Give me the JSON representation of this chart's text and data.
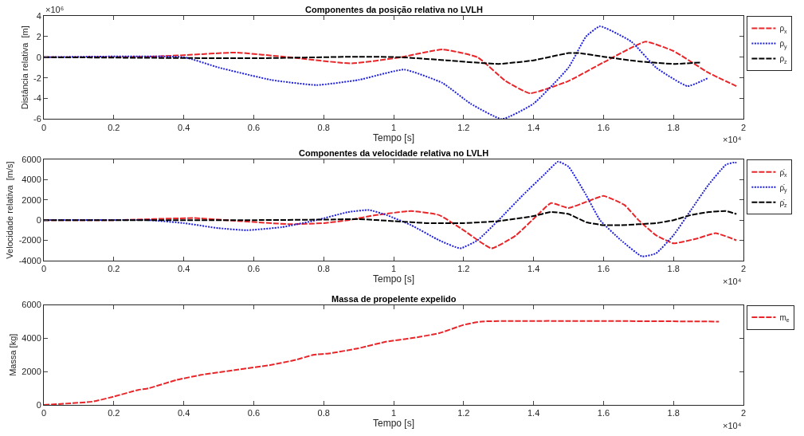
{
  "chart_data": [
    {
      "type": "line",
      "title": "Componentes da posição relativa no LVLH",
      "xlabel": "Tempo [s]",
      "ylabel": "Distância relativa  [m]",
      "legend": "top right",
      "grid": false,
      "xlim": [
        0,
        2
      ],
      "xticks": [
        0,
        0.2,
        0.4,
        0.6,
        0.8,
        1,
        1.2,
        1.4,
        1.6,
        1.8,
        2
      ],
      "ylim": [
        -6,
        4
      ],
      "yticks": [
        -6,
        -4,
        -2,
        0,
        2,
        4
      ],
      "annotations": [
        "×10⁶",
        "×10⁴"
      ],
      "series": [
        {
          "name": "ρ$_{x}$",
          "color": "#e8262a",
          "line_style": "dashed",
          "x": [
            0,
            0.3,
            0.4,
            0.55,
            0.7,
            0.88,
            1.02,
            1.14,
            1.24,
            1.32,
            1.39,
            1.5,
            1.6,
            1.72,
            1.8,
            1.9,
            1.98
          ],
          "values": [
            0,
            0.05,
            0.2,
            0.45,
            0,
            -0.6,
            0,
            0.75,
            0,
            -2.3,
            -3.5,
            -2.3,
            -0.5,
            1.5,
            0.6,
            -1.5,
            -2.8
          ]
        },
        {
          "name": "ρ$_{y}$",
          "color": "#1f1fe0",
          "line_style": "dotted",
          "x": [
            0,
            0.4,
            0.5,
            0.65,
            0.78,
            0.9,
            1.03,
            1.14,
            1.22,
            1.31,
            1.4,
            1.5,
            1.55,
            1.59,
            1.68,
            1.75,
            1.84,
            1.9
          ],
          "values": [
            0,
            0,
            -1,
            -2.2,
            -2.7,
            -2.2,
            -1.2,
            -2.5,
            -4.5,
            -6,
            -4.5,
            -1,
            2,
            3,
            1.5,
            -1,
            -2.8,
            -2
          ]
        },
        {
          "name": "ρ$_{z}$",
          "color": "#000000",
          "line_style": "dashed",
          "x": [
            0,
            0.6,
            0.9,
            1.02,
            1.15,
            1.3,
            1.4,
            1.5,
            1.53,
            1.6,
            1.7,
            1.8,
            1.88
          ],
          "values": [
            0,
            -0.1,
            0.05,
            0,
            -0.3,
            -0.65,
            -0.3,
            0.4,
            0.4,
            0.05,
            -0.4,
            -0.65,
            -0.5
          ]
        }
      ]
    },
    {
      "type": "line",
      "title": "Componentes da velocidade relativa no LVLH",
      "xlabel": "Tempo [s]",
      "ylabel": "Velocidade relativa  [m/s]",
      "legend": "top right",
      "grid": false,
      "xlim": [
        0,
        2
      ],
      "xticks": [
        0,
        0.2,
        0.4,
        0.6,
        0.8,
        1,
        1.2,
        1.4,
        1.6,
        1.8,
        2
      ],
      "ylim": [
        -4000,
        6000
      ],
      "yticks": [
        -4000,
        -2000,
        0,
        2000,
        4000,
        6000
      ],
      "annotations": [
        "×10⁴"
      ],
      "series": [
        {
          "name": "ρ̇$_{x}$",
          "color": "#e8262a",
          "line_style": "dashed",
          "x": [
            0,
            0.2,
            0.43,
            0.52,
            0.7,
            0.8,
            0.87,
            0.95,
            1.05,
            1.13,
            1.2,
            1.28,
            1.35,
            1.42,
            1.45,
            1.5,
            1.55,
            1.6,
            1.66,
            1.7,
            1.75,
            1.8,
            1.87,
            1.92,
            1.98
          ],
          "values": [
            0,
            0,
            200,
            0,
            -400,
            -300,
            0,
            500,
            900,
            500,
            -1000,
            -2800,
            -1500,
            800,
            1700,
            1200,
            1800,
            2400,
            1500,
            0,
            -1500,
            -2300,
            -1800,
            -1300,
            -2000
          ]
        },
        {
          "name": "ρ̇$_{y}$",
          "color": "#1f1fe0",
          "line_style": "dotted",
          "x": [
            0,
            0.3,
            0.4,
            0.5,
            0.58,
            0.68,
            0.78,
            0.87,
            0.93,
            0.98,
            1.05,
            1.13,
            1.19,
            1.24,
            1.3,
            1.37,
            1.43,
            1.47,
            1.5,
            1.55,
            1.59,
            1.65,
            1.71,
            1.75,
            1.8,
            1.85,
            1.9,
            1.95,
            1.97,
            1.98
          ],
          "values": [
            0,
            0,
            -300,
            -800,
            -1000,
            -700,
            0,
            800,
            1000,
            500,
            -500,
            -2000,
            -2800,
            -2000,
            0,
            2500,
            4500,
            5800,
            5300,
            2500,
            0,
            -2000,
            -3600,
            -3300,
            -1500,
            1000,
            3500,
            5500,
            5700,
            5700
          ]
        },
        {
          "name": "ρ̇$_{z}$",
          "color": "#000000",
          "line_style": "dashed",
          "x": [
            0,
            0.6,
            0.8,
            0.9,
            1,
            1.1,
            1.2,
            1.3,
            1.4,
            1.45,
            1.5,
            1.55,
            1.6,
            1.65,
            1.75,
            1.8,
            1.85,
            1.9,
            1.95,
            1.98
          ],
          "values": [
            0,
            0,
            50,
            100,
            -100,
            -300,
            -300,
            -100,
            400,
            800,
            600,
            -200,
            -500,
            -500,
            -300,
            0,
            500,
            800,
            900,
            600
          ]
        }
      ]
    },
    {
      "type": "line",
      "title": "Massa de propelente expelido",
      "xlabel": "Tempo [s]",
      "ylabel": "Massa [kg]",
      "legend": "top right",
      "grid": false,
      "xlim": [
        0,
        2
      ],
      "xticks": [
        0,
        0.2,
        0.4,
        0.6,
        0.8,
        1,
        1.2,
        1.4,
        1.6,
        1.8,
        2
      ],
      "ylim": [
        0,
        6000
      ],
      "yticks": [
        0,
        2000,
        4000,
        6000
      ],
      "annotations": [
        "×10⁴"
      ],
      "series": [
        {
          "name": "m$_{e}$",
          "color": "#e8262a",
          "line_style": "dashed",
          "x": [
            0,
            0.14,
            0.2,
            0.27,
            0.3,
            0.38,
            0.45,
            0.55,
            0.65,
            0.72,
            0.77,
            0.82,
            0.9,
            0.98,
            1.05,
            1.13,
            1.2,
            1.25,
            1.93
          ],
          "values": [
            0,
            200,
            500,
            900,
            1000,
            1500,
            1800,
            2100,
            2400,
            2700,
            3000,
            3100,
            3400,
            3800,
            4000,
            4300,
            4800,
            5000,
            5000
          ]
        }
      ]
    }
  ]
}
